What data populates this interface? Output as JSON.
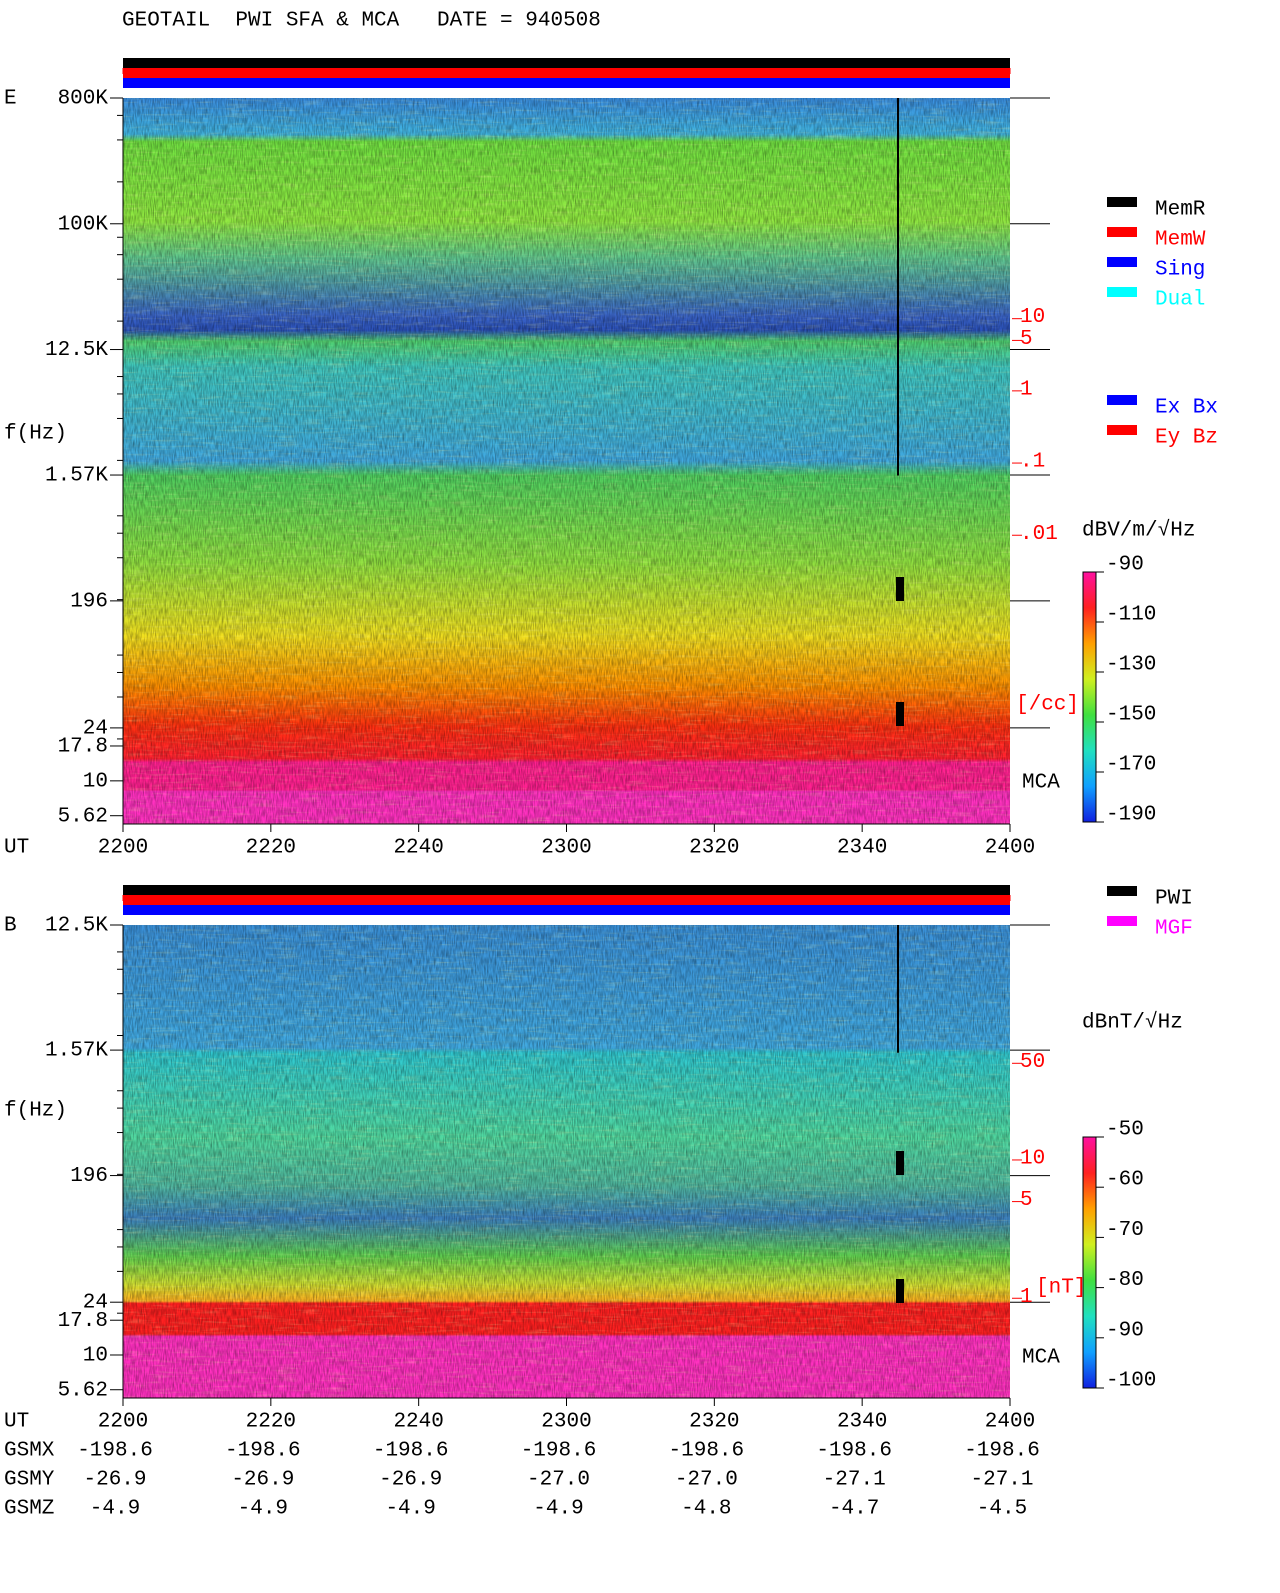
{
  "chart_data": [
    {
      "type": "heatmap",
      "title": "GEOTAIL  PWI SFA & MCA   DATE = 940508",
      "panel_label": "E",
      "ylabel": "f(Hz)",
      "xlabel": "UT",
      "log_y": true,
      "ylim": [
        4.9,
        800000
      ],
      "yticks": [
        {
          "value": 800000,
          "label": "800K"
        },
        {
          "value": 100000,
          "label": "100K"
        },
        {
          "value": 12500,
          "label": "12.5K"
        },
        {
          "value": 1570,
          "label": "1.57K"
        },
        196,
        24,
        17.8,
        10,
        5.62
      ],
      "xticks": [
        "2200",
        "2220",
        "2240",
        "2300",
        "2320",
        "2340",
        "2400"
      ],
      "y2label": "[/cc]",
      "y2lim": [
        1e-06,
        11400
      ],
      "y2color": "#ff0000",
      "y2ticks": [
        10,
        5,
        1,
        {
          "value": 0.1,
          "label": ".1"
        },
        {
          "value": 0.01,
          "label": ".01"
        }
      ],
      "band_label": "MCA",
      "colorbar": {
        "label": "dBV/m/√Hz",
        "lim": [
          -190,
          -90
        ],
        "ticks": [
          -90,
          -110,
          -130,
          -150,
          -170,
          -190
        ],
        "colors": [
          "#1020e0",
          "#10a0ff",
          "#20e0c0",
          "#40e040",
          "#d0f020",
          "#ffa000",
          "#ff2020",
          "#ff10a0"
        ]
      },
      "legends": [
        [
          {
            "name": "MemR",
            "color": "#000000"
          },
          {
            "name": "MemW",
            "color": "#ff0000"
          },
          {
            "name": "Sing",
            "color": "#0000ff"
          },
          {
            "name": "Dual",
            "color": "#00ffff"
          }
        ],
        [
          {
            "name": "Ex Bx",
            "color": "#0000ff"
          },
          {
            "name": "Ey Bz",
            "color": "#ff0000"
          }
        ]
      ]
    },
    {
      "type": "heatmap",
      "panel_label": "B",
      "ylabel": "f(Hz)",
      "xlabel": "UT",
      "log_y": true,
      "ylim": [
        4.9,
        12500
      ],
      "yticks": [
        {
          "value": 12500,
          "label": "12.5K"
        },
        {
          "value": 1570,
          "label": "1.57K"
        },
        196,
        24,
        17.8,
        10,
        5.62
      ],
      "xticks": [
        "2200",
        "2220",
        "2240",
        "2300",
        "2320",
        "2340",
        "2400"
      ],
      "y2label": "[nT]",
      "y2lim": [
        0.19,
        500
      ],
      "y2color": "#ff0000",
      "y2ticks": [
        50,
        10,
        5,
        1
      ],
      "band_label": "MCA",
      "colorbar": {
        "label": "dBnT/√Hz",
        "lim": [
          -100,
          -50
        ],
        "ticks": [
          -50,
          -60,
          -70,
          -80,
          -90,
          -100
        ],
        "colors": [
          "#1020e0",
          "#10a0ff",
          "#20e0c0",
          "#40e040",
          "#d0f020",
          "#ffa000",
          "#ff2020",
          "#ff10a0"
        ]
      },
      "legends": [
        [
          {
            "name": "PWI",
            "color": "#000000"
          },
          {
            "name": "MGF",
            "color": "#ff00ff"
          }
        ]
      ],
      "orbit": [
        {
          "name": "GSMX",
          "values": [
            -198.6,
            -198.6,
            -198.6,
            -198.6,
            -198.6,
            -198.6,
            -198.6
          ]
        },
        {
          "name": "GSMY",
          "values": [
            -26.9,
            -26.9,
            -26.9,
            -27.0,
            -27.0,
            -27.1,
            -27.1
          ],
          "value_labels": [
            "-26.9",
            "-26.9",
            "-26.9",
            "-27.0",
            "-27.0",
            "-27.1",
            "-27.1"
          ]
        },
        {
          "name": "GSMZ",
          "values": [
            -4.9,
            -4.9,
            -4.9,
            -4.9,
            -4.8,
            -4.7,
            -4.5
          ]
        }
      ]
    }
  ]
}
